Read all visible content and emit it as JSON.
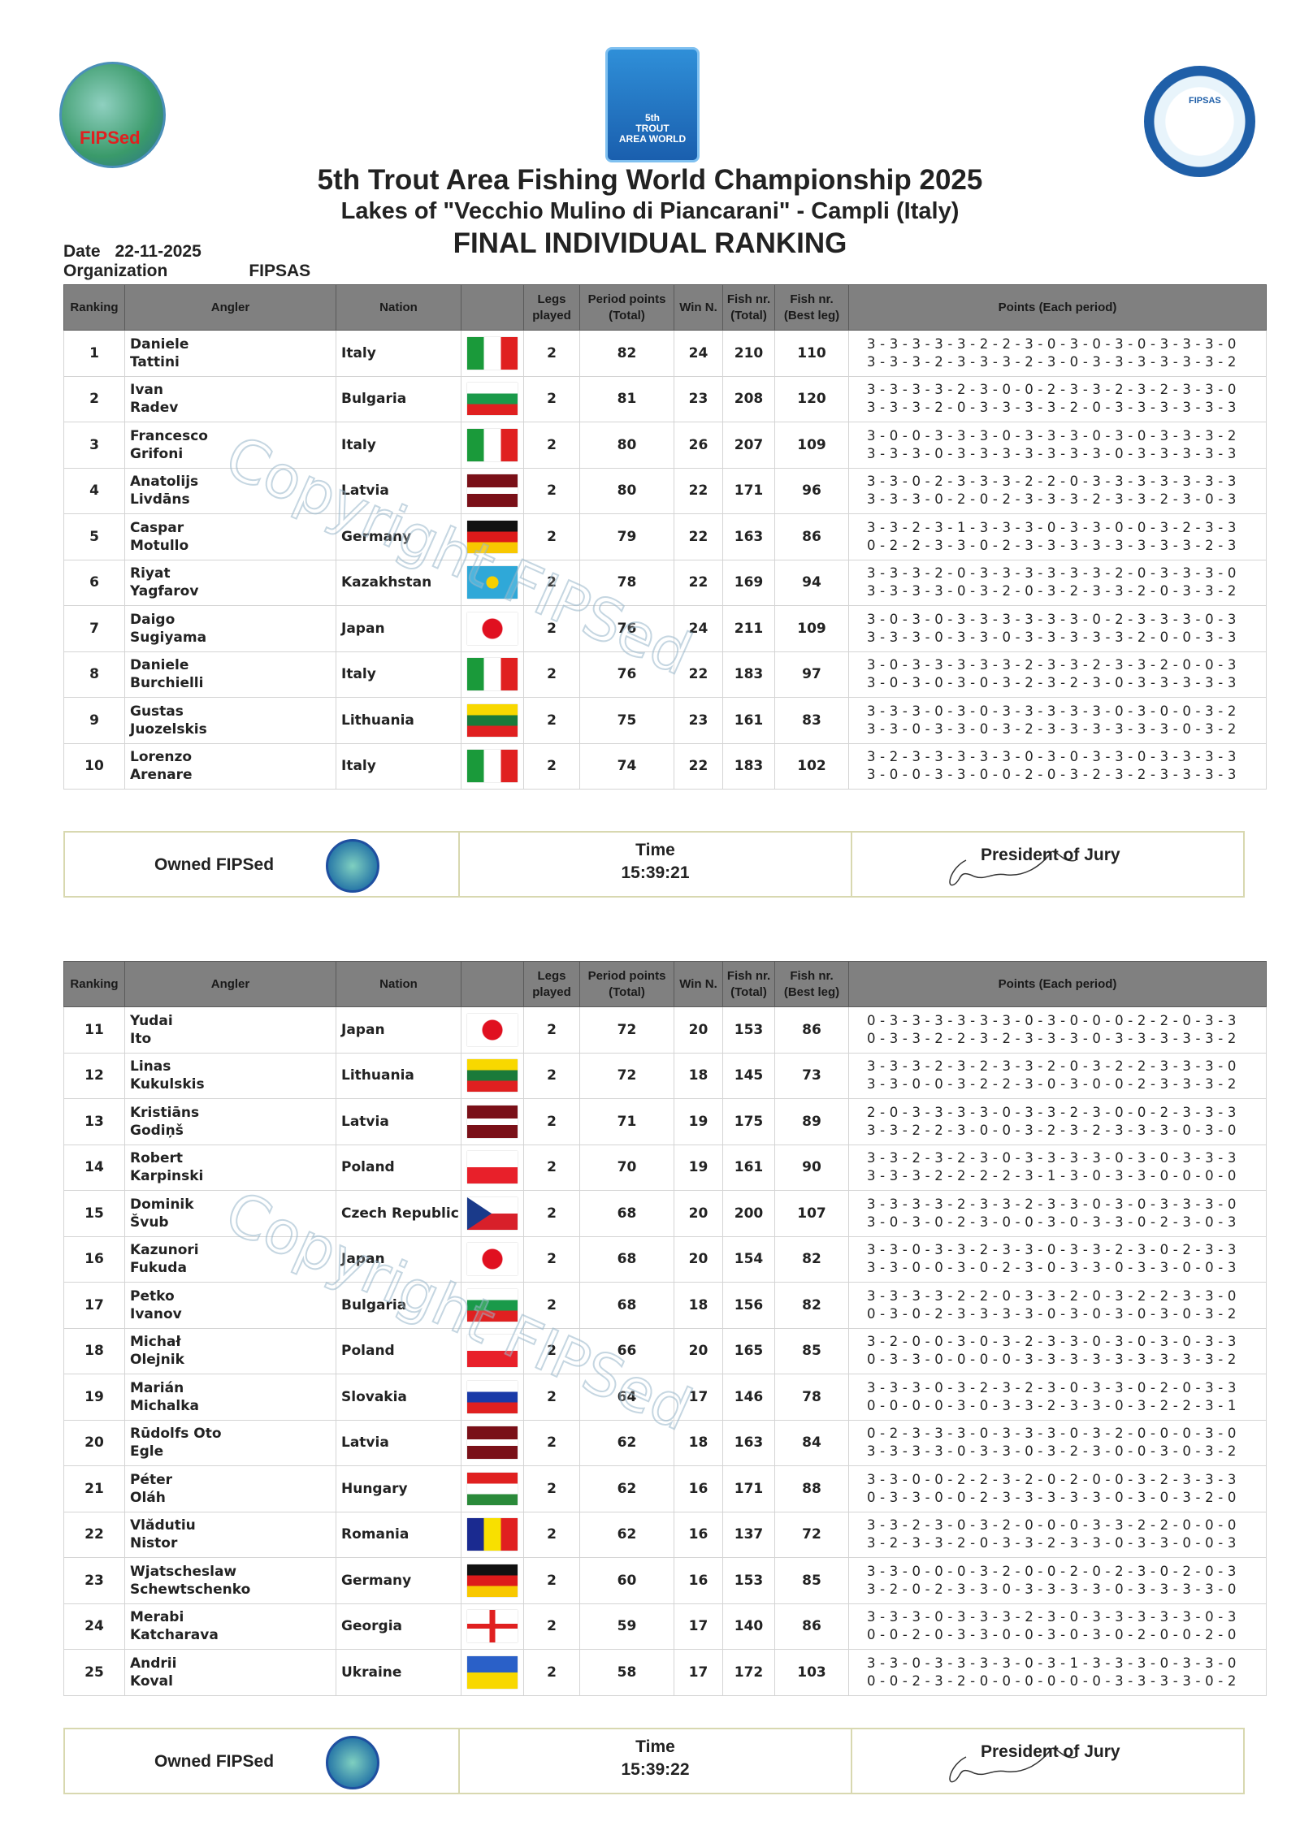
{
  "logos": {
    "left": "FIPSed",
    "center": "5th TROUT AREA WORLD CHAMPIONSHIP ITALIA 2025",
    "right": "FIPSAS"
  },
  "header": {
    "title": "5th Trout Area Fishing World Championship 2025",
    "subtitle": "Lakes of  \"Vecchio Mulino di Piancarani\" - Campli (Italy)",
    "ranking_title": "FINAL INDIVIDUAL RANKING",
    "date_label": "Date",
    "date": "22-11-2025",
    "org_label": "Organization",
    "org": "FIPSAS"
  },
  "columns": [
    "Ranking",
    "Angler",
    "Nation",
    "",
    "Legs played",
    "Period points (Total)",
    "Win N.",
    "Fish nr. (Total)",
    "Fish nr. (Best leg)",
    "Points (Each period)"
  ],
  "watermark": "Copyright FIPSed",
  "colors": {
    "header_bg": "#808080",
    "footer_border": "#d8d8b0"
  },
  "rows": [
    {
      "rank": "1",
      "first": "Daniele",
      "last": "Tattini",
      "nation": "Italy",
      "flag": "italy",
      "legs": "2",
      "period_points": "82",
      "wins": "24",
      "fish_total": "210",
      "fish_best": "110",
      "p1": "3 - 3 - 3 - 3 - 3 - 2 - 2 - 3 - 0 - 3 - 0 - 3 - 0 - 3 - 3 - 3 - 0",
      "p2": "3 - 3 - 3 - 2 - 3 - 3 - 3 - 2 - 3 - 0 - 3 - 3 - 3 - 3 - 3 - 3 - 2"
    },
    {
      "rank": "2",
      "first": "Ivan",
      "last": "Radev",
      "nation": "Bulgaria",
      "flag": "bulgaria",
      "legs": "2",
      "period_points": "81",
      "wins": "23",
      "fish_total": "208",
      "fish_best": "120",
      "p1": "3 - 3 - 3 - 3 - 2 - 3 - 0 - 0 - 2 - 3 - 3 - 2 - 3 - 2 - 3 - 3 - 0",
      "p2": "3 - 3 - 3 - 2 - 0 - 3 - 3 - 3 - 3 - 2 - 0 - 3 - 3 - 3 - 3 - 3 - 3"
    },
    {
      "rank": "3",
      "first": "Francesco",
      "last": "Grifoni",
      "nation": "Italy",
      "flag": "italy",
      "legs": "2",
      "period_points": "80",
      "wins": "26",
      "fish_total": "207",
      "fish_best": "109",
      "p1": "3 - 0 - 0 - 3 - 3 - 3 - 0 - 3 - 3 - 3 - 0 - 3 - 0 - 3 - 3 - 3 - 2",
      "p2": "3 - 3 - 3 - 0 - 3 - 3 - 3 - 3 - 3 - 3 - 3 - 0 - 3 - 3 - 3 - 3 - 3"
    },
    {
      "rank": "4",
      "first": "Anatolijs",
      "last": "Livdāns",
      "nation": "Latvia",
      "flag": "latvia",
      "legs": "2",
      "period_points": "80",
      "wins": "22",
      "fish_total": "171",
      "fish_best": "96",
      "p1": "3 - 3 - 0 - 2 - 3 - 3 - 3 - 2 - 2 - 0 - 3 - 3 - 3 - 3 - 3 - 3 - 3",
      "p2": "3 - 3 - 3 - 0 - 2 - 0 - 2 - 3 - 3 - 3 - 2 - 3 - 3 - 2 - 3 - 0 - 3"
    },
    {
      "rank": "5",
      "first": "Caspar",
      "last": "Motullo",
      "nation": "Germany",
      "flag": "germany",
      "legs": "2",
      "period_points": "79",
      "wins": "22",
      "fish_total": "163",
      "fish_best": "86",
      "p1": "3 - 3 - 2 - 3 - 1 - 3 - 3 - 3 - 0 - 3 - 3 - 0 - 0 - 3 - 2 - 3 - 3",
      "p2": "0 - 2 - 2 - 3 - 3 - 0 - 2 - 3 - 3 - 3 - 3 - 3 - 3 - 3 - 3 - 2 - 3"
    },
    {
      "rank": "6",
      "first": "Riyat",
      "last": "Yagfarov",
      "nation": "Kazakhstan",
      "flag": "kazakhstan",
      "legs": "2",
      "period_points": "78",
      "wins": "22",
      "fish_total": "169",
      "fish_best": "94",
      "p1": "3 - 3 - 3 - 2 - 0 - 3 - 3 - 3 - 3 - 3 - 3 - 2 - 0 - 3 - 3 - 3 - 0",
      "p2": "3 - 3 - 3 - 3 - 0 - 3 - 2 - 0 - 3 - 2 - 3 - 3 - 2 - 0 - 3 - 3 - 2"
    },
    {
      "rank": "7",
      "first": "Daigo",
      "last": "Sugiyama",
      "nation": "Japan",
      "flag": "japan",
      "legs": "2",
      "period_points": "76",
      "wins": "24",
      "fish_total": "211",
      "fish_best": "109",
      "p1": "3 - 0 - 3 - 0 - 3 - 3 - 3 - 3 - 3 - 3 - 0 - 2 - 3 - 3 - 3 - 0 - 3",
      "p2": "3 - 3 - 3 - 0 - 3 - 3 - 0 - 3 - 3 - 3 - 3 - 3 - 2 - 0 - 0 - 3 - 3"
    },
    {
      "rank": "8",
      "first": "Daniele",
      "last": "Burchielli",
      "nation": "Italy",
      "flag": "italy",
      "legs": "2",
      "period_points": "76",
      "wins": "22",
      "fish_total": "183",
      "fish_best": "97",
      "p1": "3 - 0 - 3 - 3 - 3 - 3 - 3 - 2 - 3 - 3 - 2 - 3 - 3 - 2 - 0 - 0 - 3",
      "p2": "3 - 0 - 3 - 0 - 3 - 0 - 3 - 2 - 3 - 2 - 3 - 0 - 3 - 3 - 3 - 3 - 3"
    },
    {
      "rank": "9",
      "first": "Gustas",
      "last": "Juozelskis",
      "nation": "Lithuania",
      "flag": "lithuania",
      "legs": "2",
      "period_points": "75",
      "wins": "23",
      "fish_total": "161",
      "fish_best": "83",
      "p1": "3 - 3 - 3 - 0 - 3 - 0 - 3 - 3 - 3 - 3 - 3 - 0 - 3 - 0 - 0 - 3 - 2",
      "p2": "3 - 3 - 0 - 3 - 3 - 0 - 3 - 2 - 3 - 3 - 3 - 3 - 3 - 3 - 0 - 3 - 2"
    },
    {
      "rank": "10",
      "first": "Lorenzo",
      "last": "Arenare",
      "nation": "Italy",
      "flag": "italy",
      "legs": "2",
      "period_points": "74",
      "wins": "22",
      "fish_total": "183",
      "fish_best": "102",
      "p1": "3 - 2 - 3 - 3 - 3 - 3 - 3 - 0 - 3 - 0 - 3 - 3 - 0 - 3 - 3 - 3 - 3",
      "p2": "3 - 0 - 0 - 3 - 3 - 0 - 0 - 2 - 0 - 3 - 2 - 3 - 2 - 3 - 3 - 3 - 3"
    },
    {
      "rank": "11",
      "first": "Yudai",
      "last": "Ito",
      "nation": "Japan",
      "flag": "japan",
      "legs": "2",
      "period_points": "72",
      "wins": "20",
      "fish_total": "153",
      "fish_best": "86",
      "p1": "0 - 3 - 3 - 3 - 3 - 3 - 3 - 0 - 3 - 0 - 0 - 0 - 2 - 2 - 0 - 3 - 3",
      "p2": "0 - 3 - 3 - 2 - 2 - 3 - 2 - 3 - 3 - 3 - 0 - 3 - 3 - 3 - 3 - 3 - 2"
    },
    {
      "rank": "12",
      "first": "Linas",
      "last": "Kukulskis",
      "nation": "Lithuania",
      "flag": "lithuania",
      "legs": "2",
      "period_points": "72",
      "wins": "18",
      "fish_total": "145",
      "fish_best": "73",
      "p1": "3 - 3 - 3 - 2 - 3 - 2 - 3 - 3 - 2 - 0 - 3 - 2 - 2 - 3 - 3 - 3 - 0",
      "p2": "3 - 3 - 0 - 0 - 3 - 2 - 2 - 3 - 0 - 3 - 0 - 0 - 2 - 3 - 3 - 3 - 2"
    },
    {
      "rank": "13",
      "first": "Kristiāns",
      "last": "Godiņš",
      "nation": "Latvia",
      "flag": "latvia",
      "legs": "2",
      "period_points": "71",
      "wins": "19",
      "fish_total": "175",
      "fish_best": "89",
      "p1": "2 - 0 - 3 - 3 - 3 - 3 - 0 - 3 - 3 - 2 - 3 - 0 - 0 - 2 - 3 - 3 - 3",
      "p2": "3 - 3 - 2 - 2 - 3 - 0 - 0 - 3 - 2 - 3 - 2 - 3 - 3 - 3 - 0 - 3 - 0"
    },
    {
      "rank": "14",
      "first": "Robert",
      "last": "Karpinski",
      "nation": "Poland",
      "flag": "poland",
      "legs": "2",
      "period_points": "70",
      "wins": "19",
      "fish_total": "161",
      "fish_best": "90",
      "p1": "3 - 3 - 2 - 3 - 2 - 3 - 0 - 3 - 3 - 3 - 3 - 0 - 3 - 0 - 3 - 3 - 3",
      "p2": "3 - 3 - 3 - 2 - 2 - 2 - 2 - 3 - 1 - 3 - 0 - 3 - 3 - 0 - 0 - 0 - 0"
    },
    {
      "rank": "15",
      "first": "Dominik",
      "last": "Švub",
      "nation": "Czech Republic",
      "flag": "czech",
      "legs": "2",
      "period_points": "68",
      "wins": "20",
      "fish_total": "200",
      "fish_best": "107",
      "p1": "3 - 3 - 3 - 3 - 2 - 3 - 3 - 2 - 3 - 3 - 0 - 3 - 0 - 3 - 3 - 3 - 0",
      "p2": "3 - 0 - 3 - 0 - 2 - 3 - 0 - 0 - 3 - 0 - 3 - 3 - 0 - 2 - 3 - 0 - 3"
    },
    {
      "rank": "16",
      "first": "Kazunori",
      "last": "Fukuda",
      "nation": "Japan",
      "flag": "japan",
      "legs": "2",
      "period_points": "68",
      "wins": "20",
      "fish_total": "154",
      "fish_best": "82",
      "p1": "3 - 3 - 0 - 3 - 3 - 2 - 3 - 3 - 0 - 3 - 3 - 2 - 3 - 0 - 2 - 3 - 3",
      "p2": "3 - 3 - 0 - 0 - 3 - 0 - 2 - 3 - 0 - 3 - 3 - 0 - 3 - 3 - 0 - 0 - 3"
    },
    {
      "rank": "17",
      "first": "Petko",
      "last": "Ivanov",
      "nation": "Bulgaria",
      "flag": "bulgaria",
      "legs": "2",
      "period_points": "68",
      "wins": "18",
      "fish_total": "156",
      "fish_best": "82",
      "p1": "3 - 3 - 3 - 3 - 2 - 2 - 0 - 3 - 3 - 2 - 0 - 3 - 2 - 2 - 3 - 3 - 0",
      "p2": "0 - 3 - 0 - 2 - 3 - 3 - 3 - 3 - 0 - 3 - 0 - 3 - 0 - 3 - 0 - 3 - 2"
    },
    {
      "rank": "18",
      "first": "Michał",
      "last": "Olejnik",
      "nation": "Poland",
      "flag": "poland",
      "legs": "2",
      "period_points": "66",
      "wins": "20",
      "fish_total": "165",
      "fish_best": "85",
      "p1": "3 - 2 - 0 - 0 - 3 - 0 - 3 - 2 - 3 - 3 - 0 - 3 - 0 - 3 - 0 - 3 - 3",
      "p2": "0 - 3 - 3 - 0 - 0 - 0 - 0 - 3 - 3 - 3 - 3 - 3 - 3 - 3 - 3 - 3 - 2"
    },
    {
      "rank": "19",
      "first": "Marián",
      "last": "Michalka",
      "nation": "Slovakia",
      "flag": "slovakia",
      "legs": "2",
      "period_points": "64",
      "wins": "17",
      "fish_total": "146",
      "fish_best": "78",
      "p1": "3 - 3 - 3 - 0 - 3 - 2 - 3 - 2 - 3 - 0 - 3 - 3 - 0 - 2 - 0 - 3 - 3",
      "p2": "0 - 0 - 0 - 0 - 3 - 0 - 3 - 3 - 2 - 3 - 3 - 0 - 3 - 2 - 2 - 3 - 1"
    },
    {
      "rank": "20",
      "first": "Rūdolfs Oto",
      "last": "Egle",
      "nation": "Latvia",
      "flag": "latvia",
      "legs": "2",
      "period_points": "62",
      "wins": "18",
      "fish_total": "163",
      "fish_best": "84",
      "p1": "0 - 2 - 3 - 3 - 3 - 0 - 3 - 3 - 3 - 0 - 3 - 2 - 0 - 0 - 0 - 3 - 0",
      "p2": "3 - 3 - 3 - 3 - 0 - 3 - 3 - 0 - 3 - 2 - 3 - 0 - 0 - 3 - 0 - 3 - 2"
    },
    {
      "rank": "21",
      "first": "Péter",
      "last": "Oláh",
      "nation": "Hungary",
      "flag": "hungary",
      "legs": "2",
      "period_points": "62",
      "wins": "16",
      "fish_total": "171",
      "fish_best": "88",
      "p1": "3 - 3 - 0 - 0 - 2 - 2 - 3 - 2 - 0 - 2 - 0 - 0 - 3 - 2 - 3 - 3 - 3",
      "p2": "0 - 3 - 3 - 0 - 0 - 2 - 3 - 3 - 3 - 3 - 3 - 0 - 3 - 0 - 3 - 2 - 0"
    },
    {
      "rank": "22",
      "first": "Vlădutiu",
      "last": "Nistor",
      "nation": "Romania",
      "flag": "romania",
      "legs": "2",
      "period_points": "62",
      "wins": "16",
      "fish_total": "137",
      "fish_best": "72",
      "p1": "3 - 3 - 2 - 3 - 0 - 3 - 2 - 0 - 0 - 0 - 3 - 3 - 2 - 2 - 0 - 0 - 0",
      "p2": "3 - 2 - 3 - 3 - 2 - 0 - 3 - 3 - 2 - 3 - 3 - 0 - 3 - 3 - 0 - 0 - 3"
    },
    {
      "rank": "23",
      "first": "Wjatscheslaw",
      "last": "Schewtschenko",
      "nation": "Germany",
      "flag": "germany",
      "legs": "2",
      "period_points": "60",
      "wins": "16",
      "fish_total": "153",
      "fish_best": "85",
      "p1": "3 - 3 - 0 - 0 - 0 - 3 - 2 - 0 - 0 - 2 - 0 - 2 - 3 - 0 - 2 - 0 - 3",
      "p2": "3 - 2 - 0 - 2 - 3 - 3 - 0 - 3 - 3 - 3 - 3 - 0 - 3 - 3 - 3 - 3 - 0"
    },
    {
      "rank": "24",
      "first": "Merabi",
      "last": "Katcharava",
      "nation": "Georgia",
      "flag": "georgia",
      "legs": "2",
      "period_points": "59",
      "wins": "17",
      "fish_total": "140",
      "fish_best": "86",
      "p1": "3 - 3 - 3 - 0 - 3 - 3 - 3 - 2 - 3 - 0 - 3 - 3 - 3 - 3 - 3 - 0 - 3",
      "p2": "0 - 0 - 2 - 0 - 3 - 3 - 0 - 0 - 3 - 0 - 3 - 0 - 2 - 0 - 0 - 2 - 0"
    },
    {
      "rank": "25",
      "first": "Andrii",
      "last": "Koval",
      "nation": "Ukraine",
      "flag": "ukraine",
      "legs": "2",
      "period_points": "58",
      "wins": "17",
      "fish_total": "172",
      "fish_best": "103",
      "p1": "3 - 3 - 0 - 3 - 3 - 3 - 3 - 0 - 3 - 1 - 3 - 3 - 3 - 0 - 3 - 3 - 0",
      "p2": "0 - 0 - 2 - 3 - 2 - 0 - 0 - 0 - 0 - 0 - 0 - 3 - 3 - 3 - 3 - 0 - 2"
    }
  ],
  "footers": [
    {
      "owned": "Owned FIPSed",
      "time_label": "Time",
      "time": "15:39:21",
      "jury": "President of Jury"
    },
    {
      "owned": "Owned FIPSed",
      "time_label": "Time",
      "time": "15:39:22",
      "jury": "President of Jury"
    }
  ]
}
